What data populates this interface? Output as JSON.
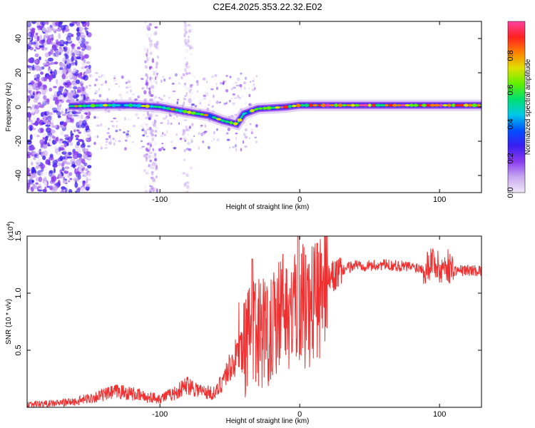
{
  "title": "C2E4.2025.353.22.32.E02",
  "chart_data": [
    {
      "type": "heatmap",
      "name": "spectrogram",
      "xlabel": "Height of straight line (km)",
      "ylabel": "Frequency (Hz)",
      "xlim": [
        -195,
        130
      ],
      "ylim": [
        -50,
        50
      ],
      "xticks": [
        -100,
        0,
        100
      ],
      "xtick_labels": [
        "-100",
        "0",
        "100"
      ],
      "yticks": [
        -40,
        -20,
        0,
        20,
        40
      ],
      "ytick_labels": [
        "-40",
        "-20",
        "0",
        "20",
        "40"
      ],
      "ridge": [
        {
          "x": -160,
          "y": 0.5
        },
        {
          "x": -140,
          "y": 1
        },
        {
          "x": -120,
          "y": 1
        },
        {
          "x": -100,
          "y": 0
        },
        {
          "x": -80,
          "y": -3
        },
        {
          "x": -65,
          "y": -5
        },
        {
          "x": -55,
          "y": -8
        },
        {
          "x": -45,
          "y": -10
        },
        {
          "x": -40,
          "y": -4
        },
        {
          "x": -30,
          "y": -1
        },
        {
          "x": -10,
          "y": 0
        },
        {
          "x": 0,
          "y": 1
        },
        {
          "x": 20,
          "y": 1
        },
        {
          "x": 60,
          "y": 1
        },
        {
          "x": 90,
          "y": 1
        },
        {
          "x": 130,
          "y": 1
        }
      ],
      "colorbar": {
        "label": "Normalized spectral amplitude",
        "ticks": [
          0.0,
          0.2,
          0.4,
          0.6,
          0.8
        ],
        "tick_labels": [
          "0.0",
          "0.2",
          "0.4",
          "0.6",
          "0.8"
        ],
        "range": [
          0,
          1
        ],
        "colors": [
          "#f0e8f8",
          "#c8a8f0",
          "#8a3cf0",
          "#3a1ef0",
          "#0050ff",
          "#00c8e8",
          "#00e070",
          "#60f000",
          "#e0e000",
          "#ff8000",
          "#ff2020",
          "#ff40a0"
        ]
      }
    },
    {
      "type": "line",
      "name": "snr",
      "xlabel": "Height of straight line (km)",
      "ylabel": "SNR (10 * v/v)",
      "scale_note": "(x10",
      "scale_exp": "4",
      "scale_close": ")",
      "xlim": [
        -195,
        130
      ],
      "ylim": [
        0,
        1.5
      ],
      "xticks": [
        -100,
        0,
        100
      ],
      "xtick_labels": [
        "-100",
        "0",
        "100"
      ],
      "yticks": [
        0.5,
        1.0,
        1.5
      ],
      "ytick_labels": [
        "0.5",
        "1.0",
        "1.5"
      ],
      "color": "#f03030",
      "series": [
        {
          "name": "SNR",
          "x": [
            -195,
            -180,
            -160,
            -150,
            -140,
            -130,
            -120,
            -110,
            -100,
            -90,
            -80,
            -70,
            -60,
            -55,
            -50,
            -45,
            -40,
            -35,
            -30,
            -25,
            -20,
            -15,
            -10,
            -5,
            0,
            5,
            10,
            15,
            20,
            25,
            30,
            40,
            50,
            60,
            70,
            80,
            90,
            95,
            100,
            105,
            110,
            120,
            130
          ],
          "y": [
            0.03,
            0.03,
            0.05,
            0.08,
            0.11,
            0.14,
            0.12,
            0.09,
            0.08,
            0.12,
            0.2,
            0.14,
            0.12,
            0.25,
            0.35,
            0.45,
            0.5,
            0.6,
            0.7,
            0.65,
            0.75,
            0.85,
            0.9,
            0.8,
            0.95,
            0.9,
            0.95,
            1.05,
            1.1,
            1.15,
            1.2,
            1.25,
            1.24,
            1.25,
            1.24,
            1.23,
            1.22,
            1.3,
            1.2,
            1.25,
            1.2,
            1.2,
            1.2
          ]
        }
      ]
    }
  ]
}
